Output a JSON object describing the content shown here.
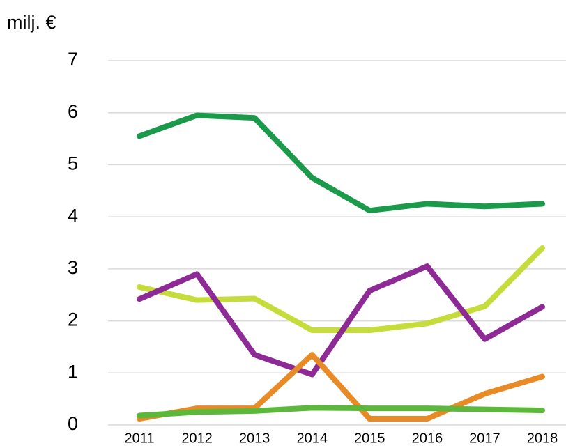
{
  "chart_data": {
    "type": "line",
    "y_label": "milj. €",
    "categories": [
      "2011",
      "2012",
      "2013",
      "2014",
      "2015",
      "2016",
      "2017",
      "2018"
    ],
    "series": [
      {
        "color": "#1a9a4a",
        "values": [
          5.55,
          5.95,
          5.9,
          4.75,
          4.12,
          4.25,
          4.2,
          4.25
        ]
      },
      {
        "color": "#c5dc3a",
        "values": [
          2.65,
          2.4,
          2.43,
          1.82,
          1.82,
          1.95,
          2.28,
          3.4
        ]
      },
      {
        "color": "#8e2a95",
        "values": [
          2.42,
          2.9,
          1.35,
          0.97,
          2.58,
          3.05,
          1.65,
          2.27
        ]
      },
      {
        "color": "#e88a25",
        "values": [
          0.12,
          0.32,
          0.32,
          1.35,
          0.12,
          0.12,
          0.6,
          0.93
        ]
      },
      {
        "color": "#5cb83a",
        "values": [
          0.18,
          0.25,
          0.27,
          0.33,
          0.32,
          0.32,
          0.3,
          0.28
        ]
      }
    ],
    "ylim": [
      0,
      7
    ],
    "yticks": [
      0,
      1,
      2,
      3,
      4,
      5,
      6,
      7
    ],
    "grid": true
  }
}
